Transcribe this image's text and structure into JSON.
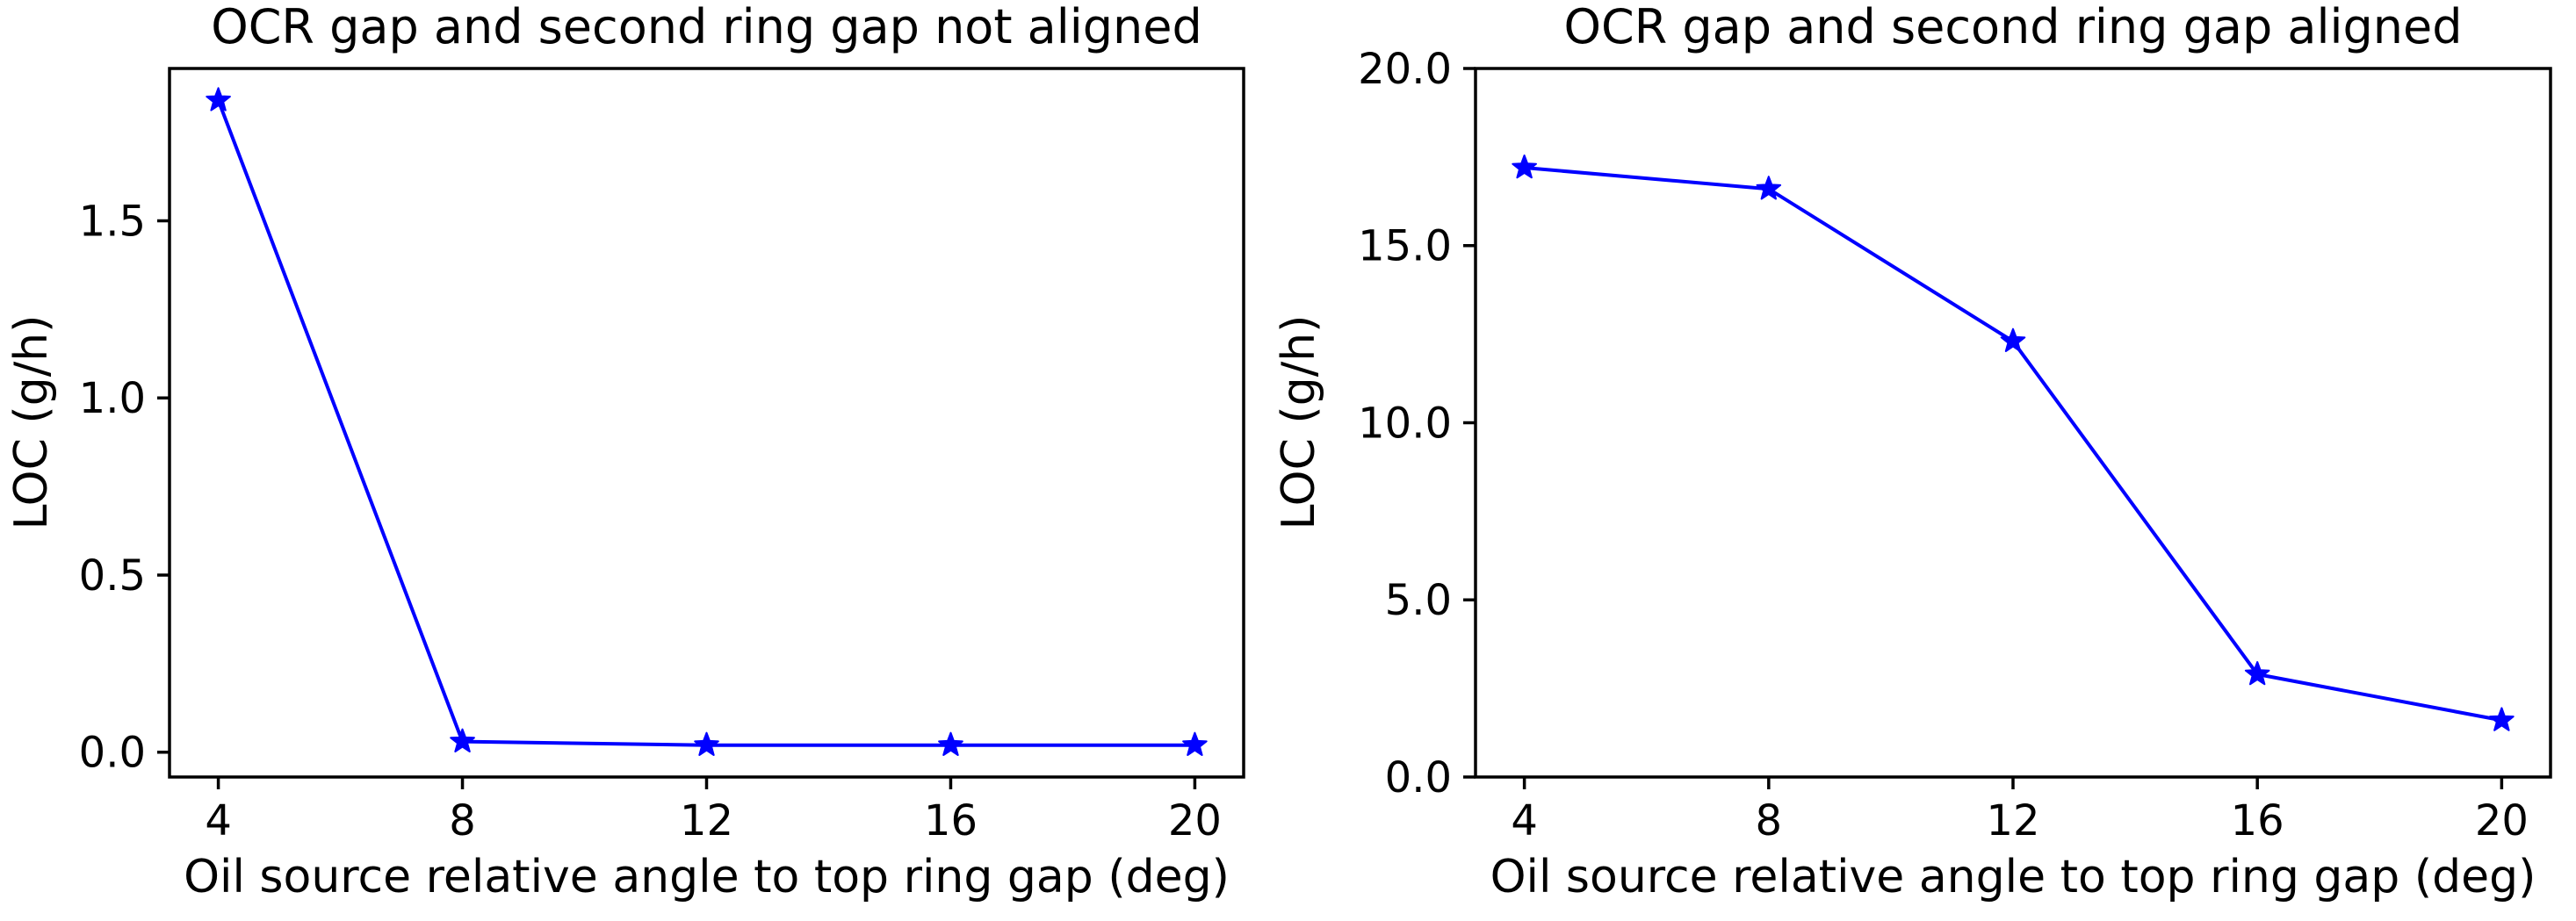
{
  "figure": {
    "background": "#ffffff",
    "axis_color": "#000000",
    "text_color": "#000000",
    "accent_line_color": "#0000ff"
  },
  "chart_data": [
    {
      "type": "line",
      "title": "OCR gap and second ring gap not aligned",
      "xlabel": "Oil source relative angle to top ring gap (deg)",
      "ylabel": "LOC (g/h)",
      "x": [
        4,
        8,
        12,
        16,
        20
      ],
      "y": [
        1.84,
        0.03,
        0.02,
        0.02,
        0.02
      ],
      "xlim": [
        3.2,
        20.8
      ],
      "ylim": [
        -0.07,
        1.93
      ],
      "xticks": [
        4,
        8,
        12,
        16,
        20
      ],
      "xtick_labels": [
        "4",
        "8",
        "12",
        "16",
        "20"
      ],
      "yticks": [
        0.0,
        0.5,
        1.0,
        1.5
      ],
      "ytick_labels": [
        "0.0",
        "0.5",
        "1.0",
        "1.5"
      ],
      "line_color": "#0000ff",
      "marker": "star",
      "grid": false,
      "legend": null
    },
    {
      "type": "line",
      "title": "OCR gap and second ring gap aligned",
      "xlabel": "Oil source relative angle to top ring gap (deg)",
      "ylabel": "LOC (g/h)",
      "x": [
        4,
        8,
        12,
        16,
        20
      ],
      "y": [
        17.2,
        16.6,
        12.3,
        2.9,
        1.6
      ],
      "xlim": [
        3.2,
        20.8
      ],
      "ylim": [
        0.0,
        20.0
      ],
      "xticks": [
        4,
        8,
        12,
        16,
        20
      ],
      "xtick_labels": [
        "4",
        "8",
        "12",
        "16",
        "20"
      ],
      "yticks": [
        0.0,
        5.0,
        10.0,
        15.0,
        20.0
      ],
      "ytick_labels": [
        "0.0",
        "5.0",
        "10.0",
        "15.0",
        "20.0"
      ],
      "line_color": "#0000ff",
      "marker": "star",
      "grid": false,
      "legend": null
    }
  ]
}
